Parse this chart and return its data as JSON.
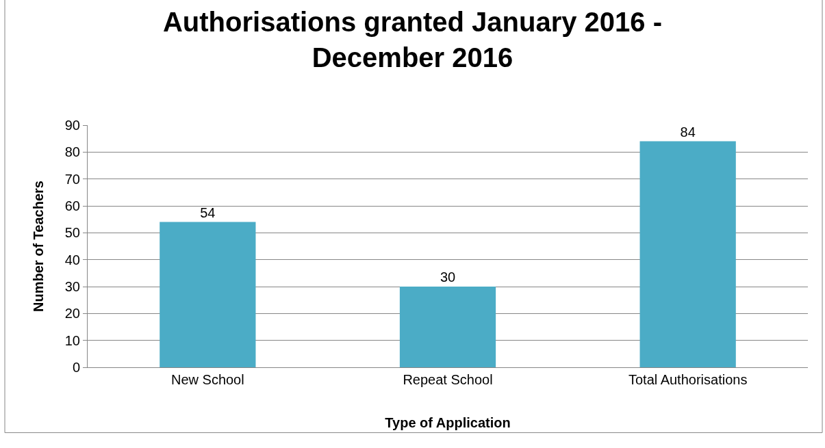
{
  "chart_data": {
    "type": "bar",
    "title": "Authorisations granted January 2016 - December 2016",
    "xlabel": "Type of Application",
    "ylabel": "Number of Teachers",
    "categories": [
      "New School",
      "Repeat School",
      "Total Authorisations"
    ],
    "values": [
      54,
      30,
      84
    ],
    "color": "#4bacc6",
    "ylim": [
      0,
      90
    ],
    "yticks": [
      0,
      10,
      20,
      30,
      40,
      50,
      60,
      70,
      80,
      90
    ],
    "grid": "y",
    "data_labels": true
  }
}
